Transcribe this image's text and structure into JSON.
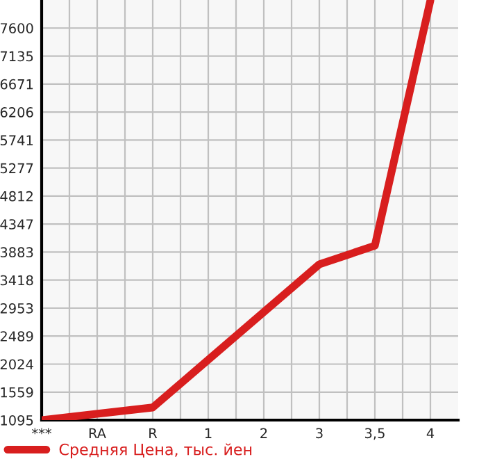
{
  "chart_data": {
    "type": "line",
    "categories": [
      "***",
      "RA",
      "R",
      "1",
      "2",
      "3",
      "3,5",
      "4"
    ],
    "series": [
      {
        "name": "Средняя Цена, тыс. йен",
        "color": "#d81e1e",
        "values": [
          1095,
          null,
          1304,
          null,
          null,
          3680,
          3988,
          8060
        ]
      }
    ],
    "ylim": [
      1095,
      8065
    ],
    "yticks": [
      1095,
      1559,
      2024,
      2489,
      2953,
      3418,
      3883,
      4347,
      4812,
      5277,
      5741,
      6206,
      6671,
      7135,
      7600
    ],
    "grid": true,
    "legend": "bottom",
    "marker": "none",
    "line_style": "solid"
  }
}
